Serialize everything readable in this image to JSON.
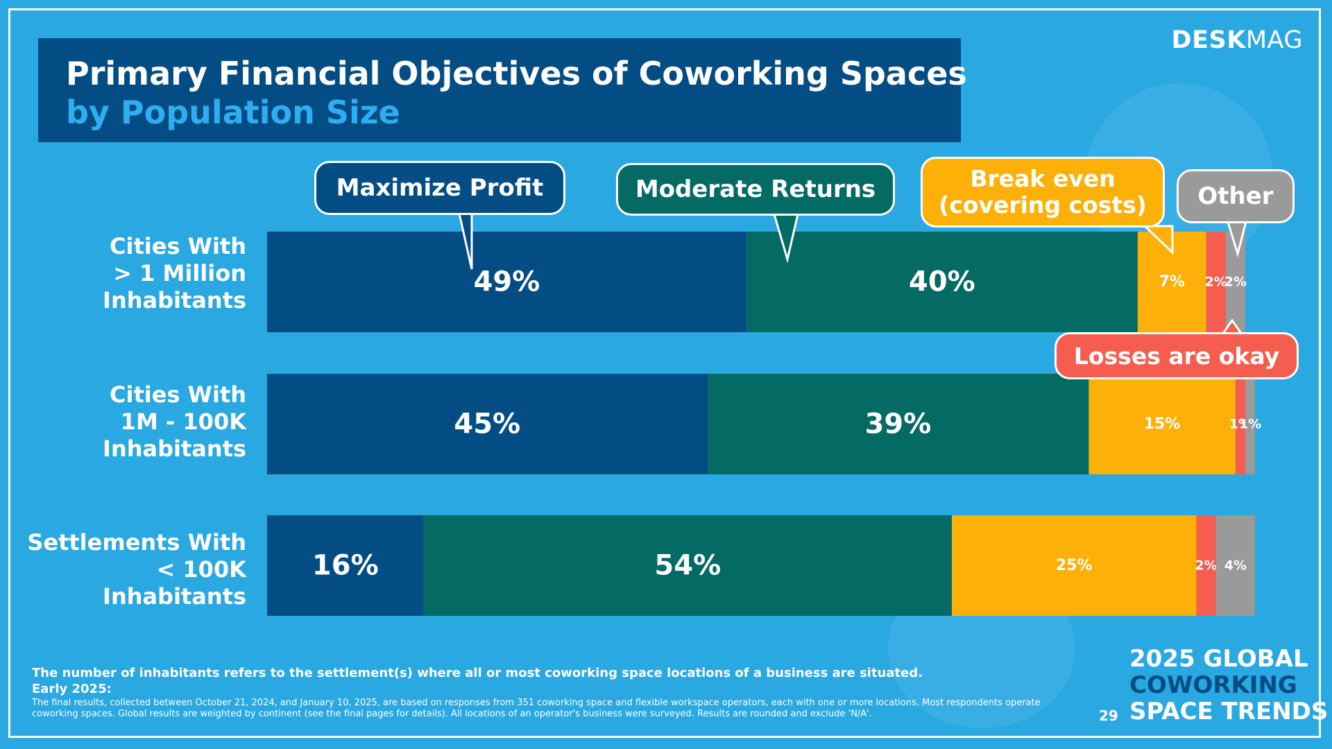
{
  "title": {
    "line1": "Primary Financial Objectives of Coworking Spaces",
    "line2": "by Population Size"
  },
  "brand": {
    "bold": "DESK",
    "light": "MAG"
  },
  "legend_bubbles": {
    "maximize_profit": "Maximize Profit",
    "moderate_returns": "Moderate Returns",
    "break_even": "Break even\n(covering costs)",
    "other": "Other",
    "losses_okay": "Losses are okay"
  },
  "colors": {
    "background": "#29a8e2",
    "maximize_profit": "#044d84",
    "moderate_returns": "#046a64",
    "break_even": "#fdb108",
    "losses_okay": "#f55d4e",
    "other": "#9a9a9a"
  },
  "chart_data": {
    "type": "bar",
    "orientation": "horizontal",
    "stacked": true,
    "categories": [
      "Cities With\n> 1 Million\nInhabitants",
      "Cities With\n1M - 100K\nInhabitants",
      "Settlements With\n< 100K\nInhabitants"
    ],
    "series": [
      {
        "name": "Maximize Profit",
        "values": [
          49,
          45,
          16
        ],
        "color": "#044d84"
      },
      {
        "name": "Moderate Returns",
        "values": [
          40,
          39,
          54
        ],
        "color": "#046a64"
      },
      {
        "name": "Break even (covering costs)",
        "values": [
          7,
          15,
          25
        ],
        "color": "#fdb108"
      },
      {
        "name": "Losses are okay",
        "values": [
          2,
          1,
          2
        ],
        "color": "#f55d4e"
      },
      {
        "name": "Other",
        "values": [
          2,
          1,
          4
        ],
        "color": "#9a9a9a"
      }
    ],
    "value_suffix": "%",
    "xlim": [
      0,
      100
    ],
    "grid": false
  },
  "footnote": {
    "bold": "The number of inhabitants refers to the settlement(s) where all or most coworking space locations of a business are situated.",
    "early": "Early 2025:",
    "small": "The final results, collected between October 21, 2024, and January 10, 2025, are based on responses from 351 coworking space and flexible workspace operators, each with one or more locations. Most respondents operate coworking spaces. Global results are weighted by continent (see the final pages for details). All locations of an operator's business were surveyed. Results are rounded and exclude 'N/A'."
  },
  "page_number": "29",
  "trends": {
    "line1": "2025 GLOBAL",
    "line2": "COWORKING",
    "line3": "SPACE TRENDS"
  }
}
